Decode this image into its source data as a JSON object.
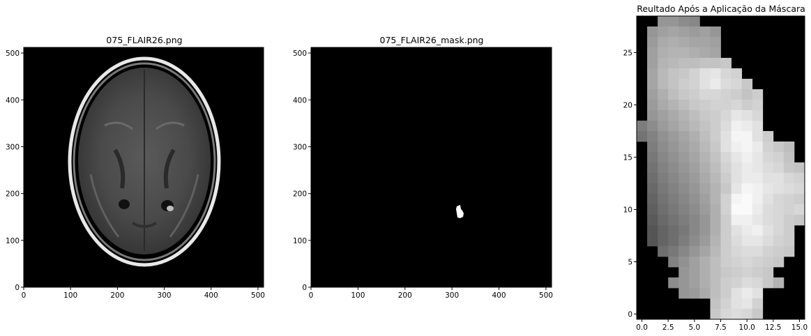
{
  "chart_data": [
    {
      "type": "image",
      "title": "075_FLAIR26.png",
      "xlim": [
        0,
        512
      ],
      "ylim": [
        512,
        0
      ],
      "xticks": [
        "0",
        "100",
        "200",
        "300",
        "400",
        "500"
      ],
      "yticks": [
        "0",
        "100",
        "200",
        "300",
        "400",
        "500"
      ]
    },
    {
      "type": "image",
      "title": "075_FLAIR26_mask.png",
      "xlim": [
        0,
        512
      ],
      "ylim": [
        512,
        0
      ],
      "xticks": [
        "0",
        "100",
        "200",
        "300",
        "400",
        "500"
      ],
      "yticks": [
        "0",
        "100",
        "200",
        "300",
        "400",
        "500"
      ]
    },
    {
      "type": "heatmap",
      "title": "Reultado Após a Aplicação da Máscara",
      "xlim": [
        -0.5,
        15.5
      ],
      "ylim": [
        28.5,
        -0.5
      ],
      "xticks": [
        "0.0",
        "2.5",
        "5.0",
        "7.5",
        "10.0",
        "12.5",
        "15.0"
      ],
      "yticks": [
        "0",
        "5",
        "10",
        "15",
        "20",
        "25"
      ],
      "colormap": "gray",
      "values": [
        [
          0,
          0,
          150,
          150,
          140,
          135,
          0,
          0,
          0,
          0,
          0,
          0,
          0,
          0,
          0,
          0
        ],
        [
          0,
          150,
          160,
          165,
          160,
          155,
          160,
          150,
          0,
          0,
          0,
          0,
          0,
          0,
          0,
          0
        ],
        [
          0,
          155,
          170,
          175,
          170,
          165,
          165,
          160,
          0,
          0,
          0,
          0,
          0,
          0,
          0,
          0
        ],
        [
          0,
          160,
          175,
          180,
          180,
          175,
          170,
          165,
          0,
          0,
          0,
          0,
          0,
          0,
          0,
          0
        ],
        [
          0,
          160,
          180,
          185,
          190,
          190,
          195,
          195,
          200,
          0,
          0,
          0,
          0,
          0,
          0,
          0
        ],
        [
          0,
          165,
          185,
          195,
          200,
          210,
          225,
          230,
          215,
          210,
          0,
          0,
          0,
          0,
          0,
          0
        ],
        [
          0,
          165,
          185,
          195,
          205,
          210,
          225,
          235,
          220,
          215,
          200,
          0,
          0,
          0,
          0,
          0
        ],
        [
          0,
          160,
          175,
          190,
          200,
          205,
          215,
          215,
          210,
          205,
          195,
          205,
          0,
          0,
          0,
          0
        ],
        [
          0,
          155,
          170,
          180,
          190,
          200,
          205,
          210,
          210,
          215,
          205,
          210,
          0,
          0,
          0,
          0
        ],
        [
          0,
          150,
          160,
          170,
          180,
          190,
          200,
          205,
          215,
          230,
          225,
          215,
          0,
          0,
          0,
          0
        ],
        [
          125,
          140,
          155,
          165,
          175,
          185,
          195,
          205,
          220,
          240,
          235,
          225,
          0,
          0,
          0,
          0
        ],
        [
          115,
          130,
          145,
          155,
          165,
          175,
          190,
          205,
          225,
          245,
          245,
          225,
          205,
          0,
          0,
          0
        ],
        [
          0,
          125,
          140,
          150,
          160,
          170,
          185,
          200,
          225,
          240,
          245,
          235,
          210,
          200,
          190,
          0
        ],
        [
          0,
          120,
          135,
          145,
          155,
          165,
          180,
          195,
          215,
          230,
          240,
          230,
          215,
          210,
          195,
          0
        ],
        [
          0,
          115,
          130,
          140,
          150,
          160,
          175,
          190,
          210,
          225,
          235,
          230,
          220,
          215,
          200,
          195
        ],
        [
          0,
          110,
          125,
          135,
          145,
          155,
          170,
          185,
          205,
          225,
          235,
          235,
          225,
          225,
          215,
          210
        ],
        [
          0,
          105,
          120,
          130,
          140,
          150,
          165,
          180,
          200,
          230,
          245,
          240,
          230,
          225,
          220,
          215
        ],
        [
          0,
          100,
          115,
          125,
          135,
          145,
          160,
          180,
          210,
          245,
          250,
          240,
          225,
          215,
          210,
          205
        ],
        [
          0,
          95,
          110,
          120,
          130,
          140,
          155,
          175,
          210,
          250,
          250,
          235,
          220,
          215,
          210,
          215
        ],
        [
          0,
          90,
          105,
          115,
          125,
          135,
          150,
          175,
          205,
          240,
          240,
          230,
          220,
          215,
          205,
          200
        ],
        [
          0,
          85,
          100,
          110,
          120,
          135,
          150,
          175,
          205,
          225,
          235,
          240,
          225,
          215,
          205,
          0
        ],
        [
          0,
          85,
          100,
          110,
          125,
          140,
          155,
          180,
          205,
          220,
          230,
          230,
          220,
          210,
          205,
          0
        ],
        [
          0,
          0,
          110,
          120,
          135,
          150,
          165,
          185,
          205,
          215,
          220,
          220,
          210,
          205,
          200,
          0
        ],
        [
          0,
          0,
          0,
          130,
          145,
          160,
          175,
          190,
          205,
          210,
          215,
          210,
          205,
          200,
          0,
          0
        ],
        [
          0,
          0,
          0,
          0,
          150,
          160,
          175,
          190,
          200,
          205,
          210,
          205,
          200,
          0,
          0,
          0
        ],
        [
          0,
          0,
          0,
          140,
          150,
          160,
          175,
          190,
          205,
          210,
          220,
          215,
          200,
          180,
          0,
          0
        ],
        [
          0,
          0,
          0,
          0,
          150,
          155,
          170,
          190,
          205,
          225,
          235,
          225,
          0,
          0,
          0,
          0
        ],
        [
          0,
          0,
          0,
          0,
          0,
          0,
          0,
          195,
          210,
          225,
          230,
          210,
          0,
          0,
          0,
          0
        ],
        [
          0,
          0,
          0,
          0,
          0,
          0,
          0,
          200,
          215,
          220,
          215,
          200,
          0,
          0,
          0,
          0
        ]
      ]
    }
  ]
}
